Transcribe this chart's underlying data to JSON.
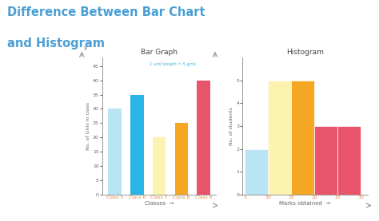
{
  "bg_color": "#ffffff",
  "title_line1": "Difference Between Bar Chart",
  "title_line2": "and Histogram",
  "title_color": "#4a9fd4",
  "title_fontsize": 10.5,
  "bar_graph_title": "Bar Graph",
  "bar_categories": [
    "Class 5",
    "Class 6",
    "Class 7",
    "Class 8",
    "Class 9"
  ],
  "bar_values": [
    30,
    35,
    20,
    25,
    40
  ],
  "bar_colors": [
    "#b8e4f4",
    "#29b5e8",
    "#fdf3b0",
    "#f5a623",
    "#e8546a"
  ],
  "bar_xlabel": "Classes",
  "bar_ylabel": "No. of Girls in class",
  "bar_ylim": [
    0,
    48
  ],
  "bar_yticks": [
    0,
    5,
    10,
    15,
    20,
    25,
    30,
    35,
    40,
    45
  ],
  "bar_annotation": "1 unit length = 5 girls",
  "bar_annotation_color": "#29b5e8",
  "bar_cat_color": "#e8884a",
  "hist_title": "Histogram",
  "hist_edges": [
    5,
    10,
    15,
    20,
    25,
    30
  ],
  "hist_values": [
    2,
    5,
    5,
    3,
    3
  ],
  "hist_colors": [
    "#b8e4f4",
    "#fdf3b0",
    "#f5a623",
    "#e8546a",
    "#e8546a"
  ],
  "hist_xlabel": "Marks obtained",
  "hist_ylabel": "No. of students",
  "hist_ylim": [
    0,
    6
  ],
  "hist_yticks": [
    0,
    1,
    2,
    3,
    4,
    5
  ],
  "hist_cat_color": "#e8884a",
  "axis_label_color": "#666666",
  "tick_color": "#666666",
  "spine_color": "#999999"
}
